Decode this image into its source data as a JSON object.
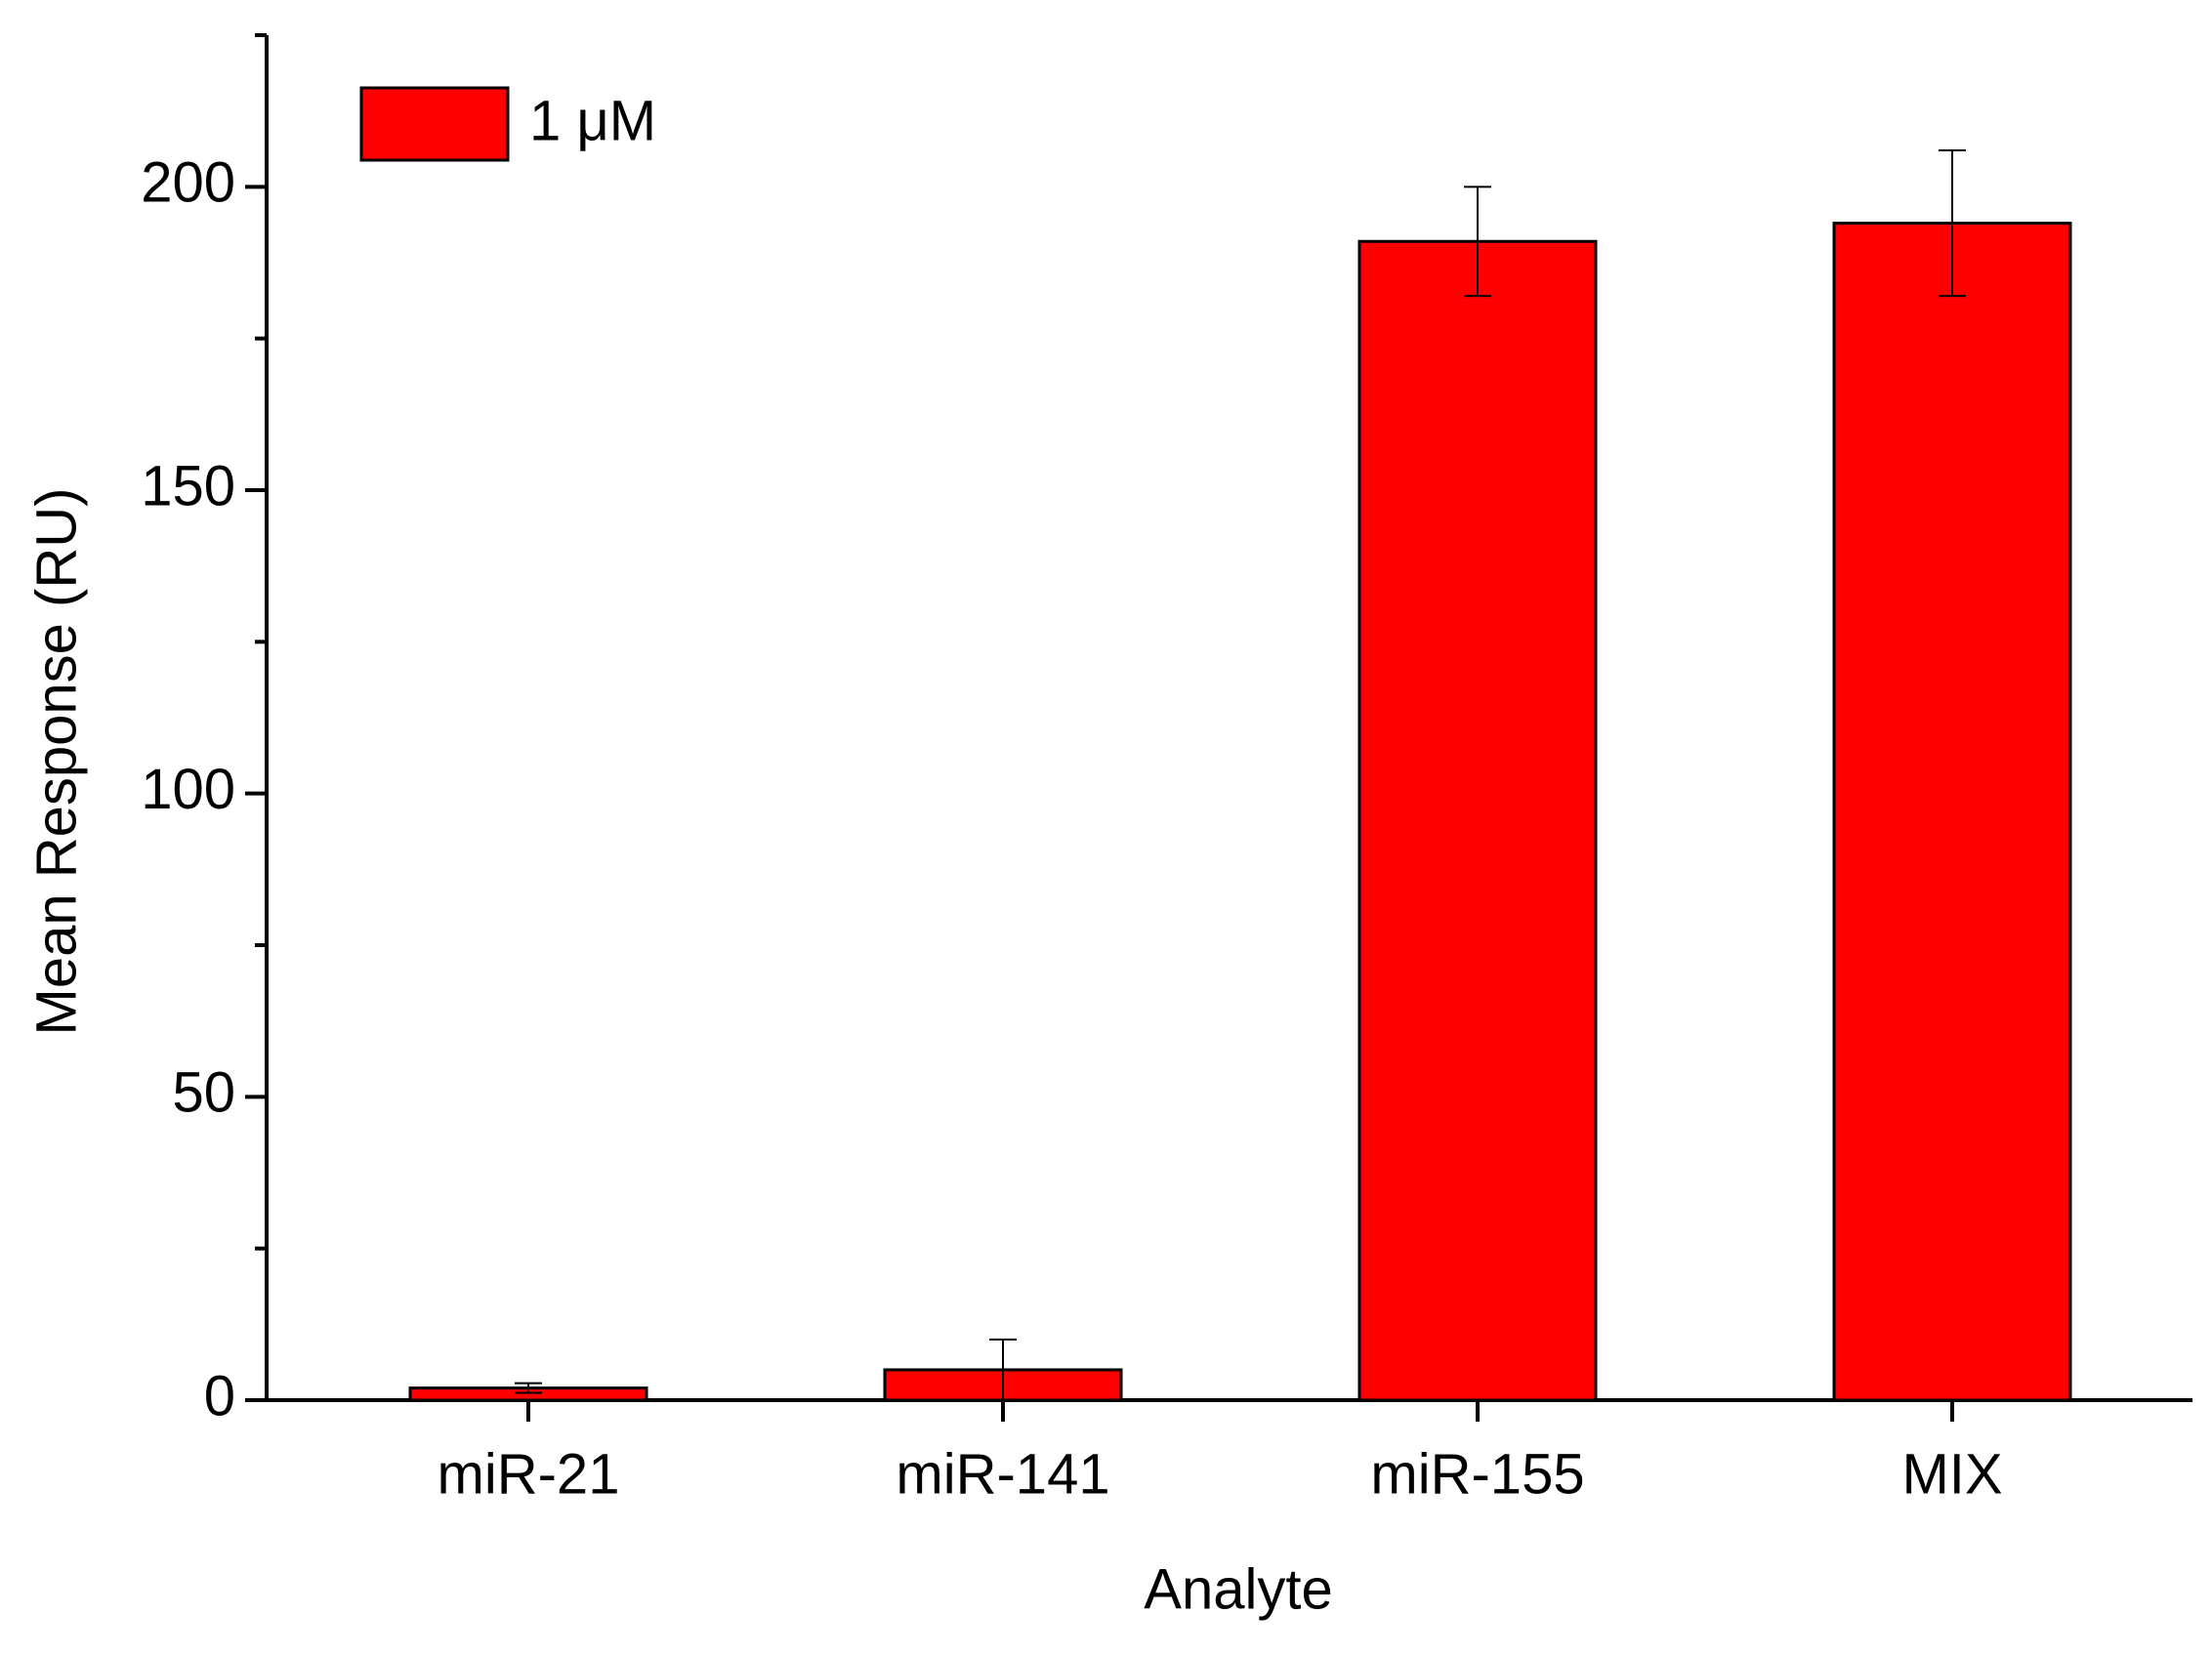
{
  "chart_data": {
    "type": "bar",
    "x_label": "Analyte",
    "y_label": "Mean Response (RU)",
    "categories": [
      "miR-21",
      "miR-141",
      "miR-155",
      "MIX"
    ],
    "series": [
      {
        "name": "1 μM",
        "color": "#ff0000",
        "values": [
          2,
          5,
          191,
          194
        ],
        "errors": [
          0.8,
          5,
          9,
          12
        ]
      }
    ],
    "ylim": [
      0,
      225
    ],
    "yticks": [
      0,
      50,
      100,
      150,
      200
    ],
    "minor_yticks": [
      25,
      75,
      125,
      175,
      225
    ],
    "legend": "upper left",
    "grid": false
  }
}
